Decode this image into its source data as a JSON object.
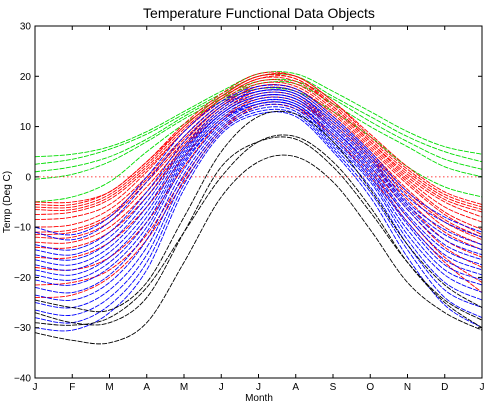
{
  "chart_data": {
    "type": "line",
    "title": "Temperature Functional Data Objects",
    "xlabel": "Month",
    "ylabel": "Temp (Deg C)",
    "xlim": [
      0,
      12
    ],
    "ylim": [
      -40,
      30
    ],
    "grid": false,
    "legend": "none",
    "xticks": [
      {
        "v": 0,
        "label": "J"
      },
      {
        "v": 1,
        "label": "F"
      },
      {
        "v": 2,
        "label": "M"
      },
      {
        "v": 3,
        "label": "A"
      },
      {
        "v": 4,
        "label": "M"
      },
      {
        "v": 5,
        "label": "J"
      },
      {
        "v": 6,
        "label": "J"
      },
      {
        "v": 7,
        "label": "A"
      },
      {
        "v": 8,
        "label": "S"
      },
      {
        "v": 9,
        "label": "O"
      },
      {
        "v": 10,
        "label": "N"
      },
      {
        "v": 11,
        "label": "D"
      },
      {
        "v": 12,
        "label": "J"
      }
    ],
    "yticks": [
      {
        "v": -40,
        "label": "−40"
      },
      {
        "v": -30,
        "label": "−30"
      },
      {
        "v": -20,
        "label": "−20"
      },
      {
        "v": -10,
        "label": "−10"
      },
      {
        "v": 0,
        "label": "0"
      },
      {
        "v": 10,
        "label": "10"
      },
      {
        "v": 20,
        "label": "20"
      },
      {
        "v": 30,
        "label": "30"
      }
    ],
    "reference_line": {
      "y": 0,
      "color": "#ff0000",
      "style": "dotted"
    },
    "x": [
      0,
      1,
      2,
      3,
      4,
      5,
      6,
      7,
      8,
      9,
      10,
      11,
      12
    ],
    "series": [
      {
        "color": "#00dd00",
        "values": [
          4,
          4.5,
          6,
          9,
          13,
          17,
          20.5,
          20.5,
          17,
          13,
          9,
          6,
          4.5
        ]
      },
      {
        "color": "#00dd00",
        "values": [
          2.5,
          3.5,
          5.5,
          8.5,
          12.5,
          16.5,
          20,
          20,
          16,
          12,
          8,
          5,
          3
        ]
      },
      {
        "color": "#00dd00",
        "values": [
          1,
          2,
          4,
          7.5,
          12,
          16,
          19,
          19,
          15.5,
          11,
          7,
          3.5,
          1.5
        ]
      },
      {
        "color": "#00dd00",
        "values": [
          -0.5,
          0.5,
          3,
          7,
          11.5,
          15.5,
          18.5,
          18.5,
          14.5,
          10,
          6,
          2,
          0
        ]
      },
      {
        "color": "#00dd00",
        "values": [
          -5,
          -4,
          -1,
          5,
          10.5,
          15,
          17.5,
          17,
          13,
          8,
          2,
          -2,
          -4
        ]
      },
      {
        "color": "#ff0000",
        "values": [
          -5,
          -5,
          -3,
          3,
          10,
          16,
          20,
          20,
          15,
          8.5,
          2,
          -3,
          -5.5
        ]
      },
      {
        "color": "#ff0000",
        "values": [
          -5.5,
          -5.5,
          -3,
          3,
          10.5,
          16.5,
          20.5,
          20,
          15,
          8,
          1.5,
          -3.5,
          -6
        ]
      },
      {
        "color": "#ff0000",
        "values": [
          -6,
          -6,
          -3.5,
          2.5,
          10,
          16,
          20,
          19.5,
          14.5,
          7.5,
          1,
          -4,
          -6.5
        ]
      },
      {
        "color": "#ff0000",
        "values": [
          -6.5,
          -6.5,
          -4,
          2,
          9.5,
          15.5,
          19.5,
          19.5,
          14,
          7,
          0.5,
          -4.5,
          -7
        ]
      },
      {
        "color": "#ff0000",
        "values": [
          -7.5,
          -7,
          -4.5,
          1.5,
          9,
          15.5,
          19.5,
          19,
          14,
          7,
          0,
          -5,
          -8
        ]
      },
      {
        "color": "#ff0000",
        "values": [
          -8.5,
          -8,
          -5.5,
          1,
          9,
          15,
          19,
          18.5,
          13.5,
          6.5,
          -0.5,
          -6,
          -9
        ]
      },
      {
        "color": "#ff0000",
        "values": [
          -10,
          -9.5,
          -6.5,
          0,
          8,
          14.5,
          18.5,
          18,
          13,
          6,
          -1,
          -7,
          -10.5
        ]
      },
      {
        "color": "#ff0000",
        "values": [
          -11,
          -10.5,
          -7.5,
          -0.5,
          7.5,
          14,
          18,
          17.5,
          12.5,
          5.5,
          -1.5,
          -7.5,
          -11.5
        ]
      },
      {
        "color": "#ff0000",
        "values": [
          -11.5,
          -11,
          -8,
          -1,
          7,
          14,
          18,
          17.5,
          12,
          5,
          -2.5,
          -8.5,
          -12
        ]
      },
      {
        "color": "#ff0000",
        "values": [
          -12,
          -12,
          -9,
          -2,
          6.5,
          13.5,
          17.5,
          17,
          11.5,
          4.5,
          -3,
          -9,
          -12.5
        ]
      },
      {
        "color": "#ff0000",
        "values": [
          -13,
          -13,
          -10,
          -3,
          6,
          13,
          17,
          16.5,
          11,
          4,
          -3.5,
          -10,
          -13.5
        ]
      },
      {
        "color": "#ff0000",
        "values": [
          -14,
          -14,
          -11,
          -4,
          5.5,
          12.5,
          16.5,
          16,
          10.5,
          3.5,
          -4.5,
          -11,
          -14.5
        ]
      },
      {
        "color": "#ff0000",
        "values": [
          -16,
          -16,
          -13,
          -6,
          4,
          11.5,
          16,
          15.5,
          10,
          3,
          -5.5,
          -12.5,
          -16
        ]
      },
      {
        "color": "#ff0000",
        "values": [
          -18,
          -18.5,
          -16,
          -9,
          2,
          11,
          15.5,
          15,
          9.5,
          2,
          -6.5,
          -14,
          -18
        ]
      },
      {
        "color": "#ff0000",
        "values": [
          -21.5,
          -21,
          -18.5,
          -11.5,
          0,
          9.5,
          14.5,
          14,
          8.5,
          1,
          -8,
          -16,
          -21
        ]
      },
      {
        "color": "#ff0000",
        "values": [
          -24,
          -23.5,
          -20,
          -12.5,
          -1,
          9,
          14,
          13.5,
          8,
          0,
          -9,
          -17,
          -23
        ]
      },
      {
        "color": "#0000ff",
        "values": [
          -10,
          -11.5,
          -8,
          0,
          9,
          15,
          18,
          17.5,
          12,
          5,
          -3,
          -8,
          -11
        ]
      },
      {
        "color": "#0000ff",
        "values": [
          -11,
          -12.5,
          -9,
          -1,
          8,
          14.5,
          17.5,
          17,
          11.5,
          4.5,
          -4,
          -9,
          -12
        ]
      },
      {
        "color": "#0000ff",
        "values": [
          -13.5,
          -14.5,
          -11,
          -3,
          7,
          14,
          17,
          16.5,
          11,
          4,
          -5,
          -10.5,
          -13.5
        ]
      },
      {
        "color": "#0000ff",
        "values": [
          -14.5,
          -15.5,
          -12,
          -4,
          6,
          13.5,
          17,
          16.5,
          10.5,
          3.5,
          -5.5,
          -11.5,
          -14.5
        ]
      },
      {
        "color": "#0000ff",
        "values": [
          -15.5,
          -16.5,
          -13,
          -5,
          5.5,
          13,
          16.5,
          16,
          10,
          3,
          -6,
          -12.5,
          -15.5
        ]
      },
      {
        "color": "#0000ff",
        "values": [
          -16.5,
          -17.5,
          -14,
          -6,
          5,
          12.5,
          16,
          15.5,
          9.5,
          2.5,
          -6.5,
          -13.5,
          -16.5
        ]
      },
      {
        "color": "#0000ff",
        "values": [
          -17.5,
          -18.5,
          -15,
          -7,
          4.5,
          12.5,
          16,
          15.5,
          9.5,
          2,
          -7.5,
          -14.5,
          -17.5
        ]
      },
      {
        "color": "#0000ff",
        "values": [
          -18.5,
          -19.5,
          -16,
          -8,
          4,
          12,
          15.5,
          15,
          9,
          1.5,
          -8,
          -15.5,
          -18.5
        ]
      },
      {
        "color": "#0000ff",
        "values": [
          -19.5,
          -20.5,
          -17,
          -9,
          3.5,
          11.5,
          15,
          14.5,
          8.5,
          1,
          -9,
          -16.5,
          -19.5
        ]
      },
      {
        "color": "#0000ff",
        "values": [
          -20.5,
          -21.5,
          -18,
          -10,
          3,
          11,
          15,
          14.5,
          8,
          0.5,
          -9.5,
          -17.5,
          -20.5
        ]
      },
      {
        "color": "#0000ff",
        "values": [
          -22,
          -23,
          -19.5,
          -11,
          2.5,
          11,
          14.5,
          14,
          7.5,
          0,
          -10.5,
          -18.5,
          -21.5
        ]
      },
      {
        "color": "#0000ff",
        "values": [
          -23.5,
          -24.5,
          -21,
          -12.5,
          1.5,
          10.5,
          14.5,
          14,
          7,
          -0.5,
          -11.5,
          -19.5,
          -23
        ]
      },
      {
        "color": "#0000ff",
        "values": [
          -25,
          -26,
          -22.5,
          -14,
          0.5,
          10,
          14,
          13.5,
          6.5,
          -1,
          -12.5,
          -21,
          -24.5
        ]
      },
      {
        "color": "#0000ff",
        "values": [
          -26.5,
          -27.5,
          -24,
          -15.5,
          -0.5,
          9.5,
          13.5,
          13,
          6,
          -2,
          -13.5,
          -22.5,
          -26
        ]
      },
      {
        "color": "#0000ff",
        "values": [
          -28,
          -29,
          -25.5,
          -17,
          -1.5,
          9,
          13,
          12.5,
          5.5,
          -3,
          -14.5,
          -24,
          -28
        ]
      },
      {
        "color": "#0000ff",
        "values": [
          -30,
          -30.5,
          -27,
          -18.5,
          -2.5,
          8.5,
          12.5,
          12,
          5,
          -4,
          -16,
          -25.5,
          -30
        ]
      },
      {
        "color": "#000000",
        "values": [
          -24.5,
          -26,
          -26.5,
          -21,
          -8,
          5,
          12,
          12.5,
          7,
          -2.5,
          -13.5,
          -21.5,
          -26
        ]
      },
      {
        "color": "#000000",
        "values": [
          -27,
          -29,
          -29,
          -24,
          -11,
          2,
          7,
          7.5,
          2,
          -7,
          -17,
          -24.5,
          -28.5
        ]
      },
      {
        "color": "#000000",
        "values": [
          -29,
          -29.5,
          -28,
          -22,
          -11,
          0,
          7,
          8,
          3,
          -6,
          -17,
          -25,
          -30
        ]
      },
      {
        "color": "#000000",
        "values": [
          -31,
          -32.5,
          -33,
          -29,
          -17,
          -4,
          3,
          4,
          -1,
          -10.5,
          -21,
          -27,
          -30.5
        ]
      }
    ]
  }
}
